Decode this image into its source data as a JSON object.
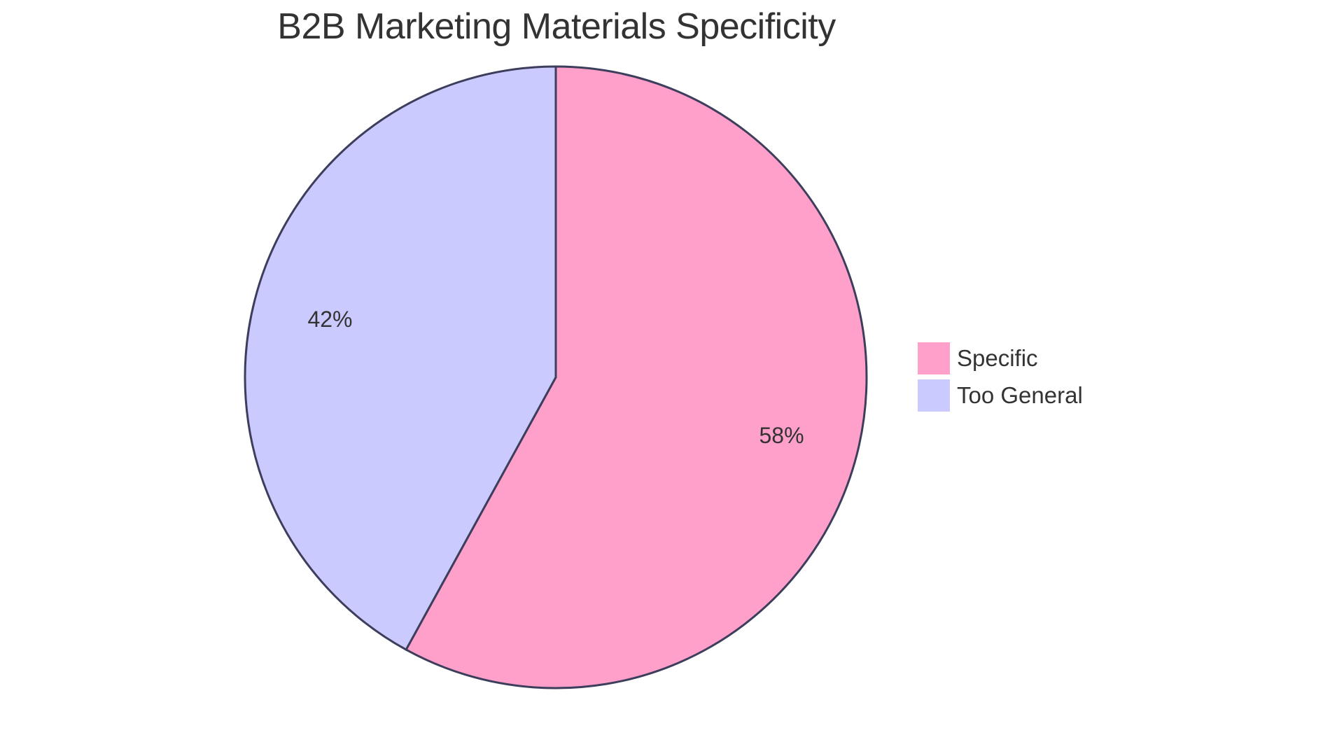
{
  "chart_data": {
    "type": "pie",
    "title": "B2B Marketing Materials Specificity",
    "categories": [
      "Specific",
      "Too General"
    ],
    "values": [
      58,
      42
    ],
    "labels": [
      "58%",
      "42%"
    ],
    "colors": [
      "#FFA0CB",
      "#CACAFF"
    ],
    "stroke": "#3D3D5C",
    "legend_position": "right"
  },
  "title": "B2B Marketing Materials Specificity",
  "legend": [
    {
      "label": "Specific",
      "color": "#FFA0CB"
    },
    {
      "label": "Too General",
      "color": "#CACAFF"
    }
  ],
  "slice_labels": [
    "58%",
    "42%"
  ]
}
